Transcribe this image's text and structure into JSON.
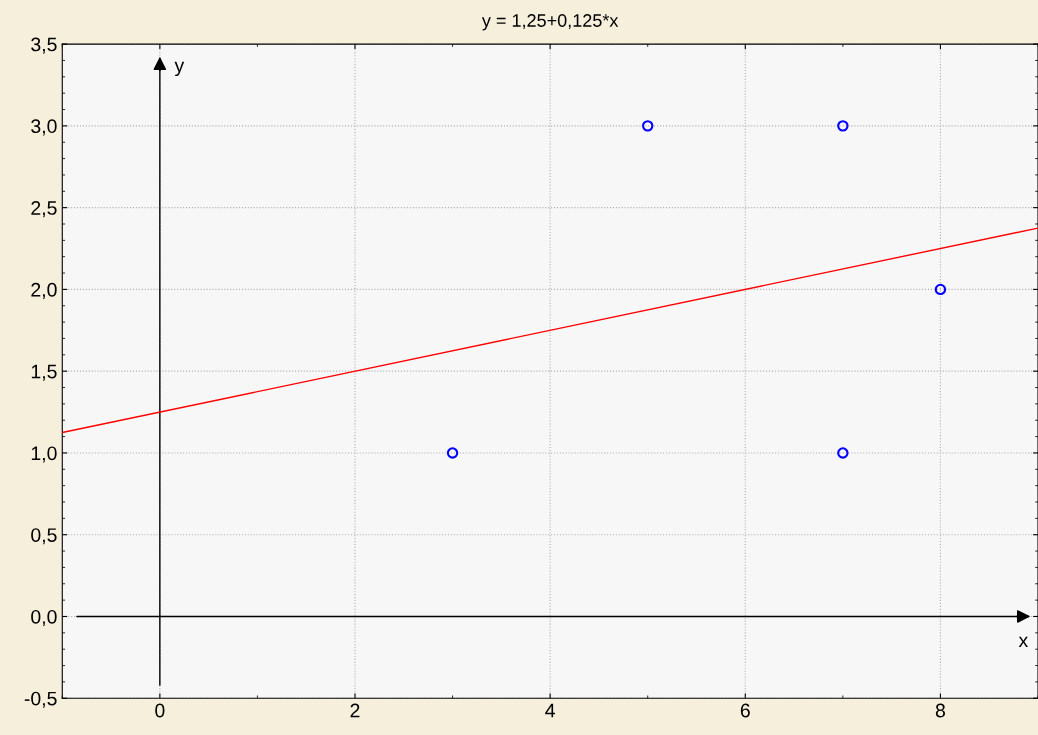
{
  "chart_data": {
    "type": "scatter",
    "title": "y = 1,25+0,125*x",
    "series": [
      {
        "color": "#0000ff",
        "marker": "circle",
        "x": [
          3,
          5,
          7,
          7,
          8
        ],
        "values": [
          1,
          3,
          3,
          1,
          2
        ]
      },
      {
        "type": "line",
        "color": "#ff0000",
        "marker": "none",
        "line_style": "solid",
        "x": [
          -1,
          9
        ],
        "values": [
          1.125,
          2.375
        ]
      }
    ],
    "xlim": [
      -1,
      9
    ],
    "xticks": [
      0,
      2,
      4,
      6,
      8
    ],
    "ylim": [
      -0.5,
      3.5
    ],
    "yticks": [
      {
        "value": -0.5,
        "label": "-0,5"
      },
      {
        "value": 0,
        "label": "0,0"
      },
      {
        "value": 0.5,
        "label": "0,5"
      },
      {
        "value": 1,
        "label": "1,0"
      },
      {
        "value": 1.5,
        "label": "1,5"
      },
      {
        "value": 2,
        "label": "2,0"
      },
      {
        "value": 2.5,
        "label": "2,5"
      },
      {
        "value": 3,
        "label": "3,0"
      },
      {
        "value": 3.5,
        "label": "3,5"
      }
    ],
    "ref_lines": [
      {
        "axis": "y",
        "value": 0,
        "label": "x",
        "color": "#000000"
      },
      {
        "axis": "x",
        "value": 0,
        "label": "y",
        "color": "#000000"
      }
    ],
    "grid": true
  }
}
